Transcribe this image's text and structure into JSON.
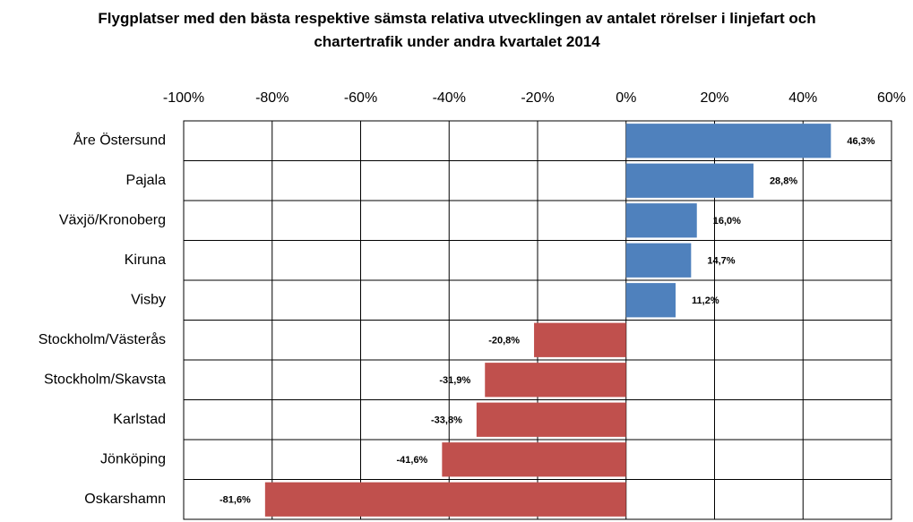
{
  "chart_data": {
    "type": "hbar",
    "title": "Flygplatser med den bästa respektive sämsta relativa utvecklingen av antalet rörelser i linjefart och chartertrafik under andra kvartalet 2014",
    "categories": [
      "Åre Östersund",
      "Pajala",
      "Växjö/Kronoberg",
      "Kiruna",
      "Visby",
      "Stockholm/Västerås",
      "Stockholm/Skavsta",
      "Karlstad",
      "Jönköping",
      "Oskarshamn"
    ],
    "values": [
      46.3,
      28.8,
      16.0,
      14.7,
      11.2,
      -20.8,
      -31.9,
      -33.8,
      -41.6,
      -81.6
    ],
    "value_labels": [
      "46,3%",
      "28,8%",
      "16,0%",
      "14,7%",
      "11,2%",
      "-20,8%",
      "-31,9%",
      "-33,8%",
      "-41,6%",
      "-81,6%"
    ],
    "colors": [
      "#4f81bd",
      "#4f81bd",
      "#4f81bd",
      "#4f81bd",
      "#4f81bd",
      "#c0504d",
      "#c0504d",
      "#c0504d",
      "#c0504d",
      "#c0504d"
    ],
    "xlim": [
      -100,
      60
    ],
    "xticks": [
      {
        "value": -100,
        "label": "-100%"
      },
      {
        "value": -80,
        "label": "-80%"
      },
      {
        "value": -60,
        "label": "-60%"
      },
      {
        "value": -40,
        "label": "-40%"
      },
      {
        "value": -20,
        "label": "-20%"
      },
      {
        "value": 0,
        "label": "0%"
      },
      {
        "value": 20,
        "label": "20%"
      },
      {
        "value": 40,
        "label": "40%"
      },
      {
        "value": 60,
        "label": "60%"
      }
    ],
    "grid": true
  }
}
